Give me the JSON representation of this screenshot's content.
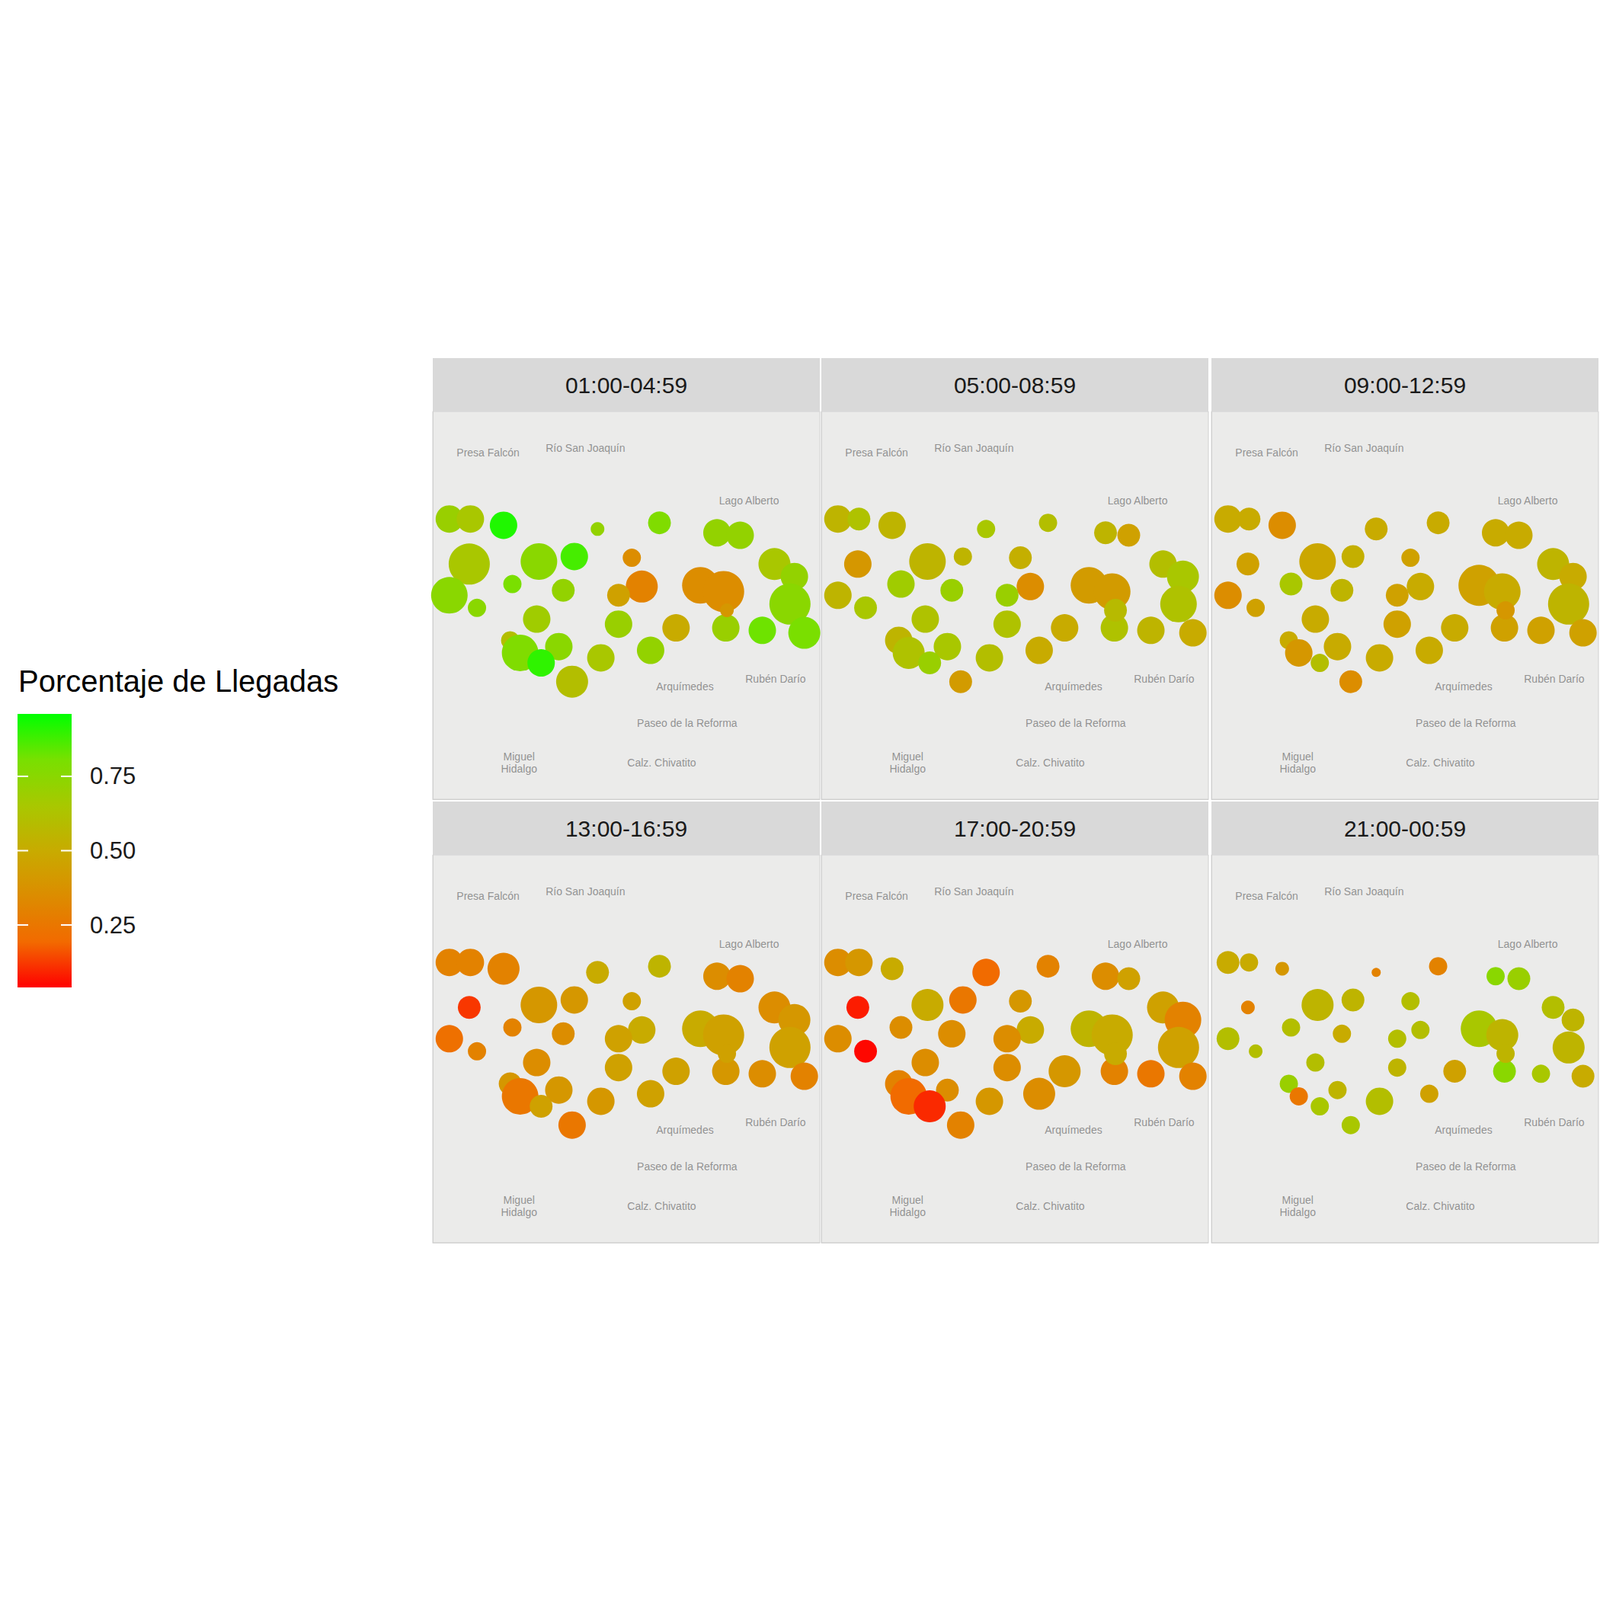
{
  "chart_data": {
    "type": "scatter",
    "tick_labels": false,
    "grid": false,
    "xlim": [
      -99.205,
      -99.17
    ],
    "ylim": [
      19.418,
      19.449
    ],
    "stations": {
      "x": [
        -99.2035,
        -99.2016,
        -99.1986,
        -99.1901,
        -99.1845,
        -99.1793,
        -99.1772,
        -99.2017,
        -99.1954,
        -99.1922,
        -99.187,
        -99.1741,
        -99.1723,
        -99.1978,
        -99.1932,
        -99.1861,
        -99.1882,
        -99.1808,
        -99.1787,
        -99.2035,
        -99.1727,
        -99.201,
        -99.1956,
        -99.1882,
        -99.183,
        -99.1785,
        -99.1752,
        -99.1714,
        -99.198,
        -99.1936,
        -99.1971,
        -99.1952,
        -99.1898,
        -99.1853,
        -99.1924,
        -99.1784
      ],
      "y": [
        19.4404,
        19.4404,
        19.4399,
        19.4396,
        19.4401,
        19.4393,
        19.4391,
        19.4368,
        19.437,
        19.4374,
        19.4373,
        19.4368,
        19.4358,
        19.4352,
        19.4347,
        19.435,
        19.4343,
        19.4351,
        19.4346,
        19.4343,
        19.4336,
        19.4333,
        19.4324,
        19.432,
        19.4317,
        19.4317,
        19.4315,
        19.4313,
        19.4307,
        19.4302,
        19.4297,
        19.4289,
        19.4293,
        19.4299,
        19.4274,
        19.4331
      ]
    },
    "panels": [
      {
        "title": "01:00-04:59",
        "values": [
          0.7,
          0.65,
          0.92,
          0.72,
          0.78,
          0.72,
          0.72,
          0.65,
          0.75,
          0.87,
          0.35,
          0.65,
          0.72,
          0.8,
          0.72,
          0.3,
          0.45,
          0.35,
          0.35,
          0.75,
          0.75,
          0.75,
          0.68,
          0.7,
          0.5,
          0.7,
          0.82,
          0.8,
          0.6,
          0.75,
          0.78,
          0.9,
          0.65,
          0.72,
          0.6,
          0.4
        ],
        "sizes": [
          6,
          6,
          6,
          3,
          5,
          6,
          6,
          9,
          8,
          6,
          4,
          7,
          6,
          4,
          5,
          7,
          5,
          8,
          9,
          8,
          9,
          4,
          6,
          6,
          6,
          6,
          6,
          7,
          4,
          6,
          8,
          6,
          6,
          6,
          7,
          3
        ]
      },
      {
        "title": "05:00-08:59",
        "values": [
          0.55,
          0.62,
          0.55,
          0.65,
          0.6,
          0.55,
          0.45,
          0.4,
          0.55,
          0.55,
          0.52,
          0.6,
          0.65,
          0.68,
          0.7,
          0.35,
          0.7,
          0.42,
          0.42,
          0.55,
          0.62,
          0.65,
          0.62,
          0.62,
          0.5,
          0.62,
          0.55,
          0.5,
          0.55,
          0.65,
          0.62,
          0.7,
          0.6,
          0.5,
          0.42,
          0.58
        ],
        "sizes": [
          6,
          5,
          6,
          4,
          4,
          5,
          5,
          6,
          8,
          4,
          5,
          6,
          7,
          6,
          5,
          6,
          5,
          8,
          8,
          6,
          8,
          5,
          6,
          6,
          6,
          6,
          6,
          6,
          6,
          6,
          7,
          5,
          6,
          6,
          5,
          5
        ]
      },
      {
        "title": "09:00-12:59",
        "values": [
          0.5,
          0.5,
          0.35,
          0.5,
          0.5,
          0.5,
          0.5,
          0.45,
          0.48,
          0.52,
          0.45,
          0.55,
          0.5,
          0.65,
          0.55,
          0.5,
          0.45,
          0.45,
          0.5,
          0.35,
          0.55,
          0.45,
          0.5,
          0.45,
          0.5,
          0.45,
          0.45,
          0.45,
          0.5,
          0.5,
          0.4,
          0.6,
          0.5,
          0.5,
          0.35,
          0.4
        ],
        "sizes": [
          6,
          5,
          6,
          5,
          5,
          6,
          6,
          5,
          8,
          5,
          4,
          7,
          6,
          5,
          5,
          6,
          5,
          9,
          8,
          6,
          9,
          4,
          6,
          6,
          6,
          6,
          6,
          6,
          4,
          6,
          6,
          4,
          6,
          6,
          5,
          4
        ]
      },
      {
        "title": "13:00-16:59",
        "values": [
          0.3,
          0.3,
          0.3,
          0.5,
          0.55,
          0.35,
          0.3,
          0.12,
          0.4,
          0.4,
          0.45,
          0.35,
          0.4,
          0.3,
          0.35,
          0.5,
          0.45,
          0.5,
          0.45,
          0.22,
          0.45,
          0.3,
          0.35,
          0.45,
          0.45,
          0.4,
          0.35,
          0.3,
          0.4,
          0.4,
          0.25,
          0.45,
          0.4,
          0.45,
          0.25,
          0.45
        ],
        "sizes": [
          6,
          6,
          7,
          5,
          5,
          6,
          6,
          5,
          8,
          6,
          4,
          7,
          7,
          4,
          5,
          6,
          6,
          8,
          9,
          6,
          9,
          4,
          6,
          6,
          6,
          6,
          6,
          6,
          5,
          6,
          8,
          5,
          6,
          6,
          6,
          4
        ]
      },
      {
        "title": "17:00-20:59",
        "values": [
          0.35,
          0.4,
          0.5,
          0.2,
          0.3,
          0.35,
          0.45,
          0.08,
          0.5,
          0.25,
          0.4,
          0.45,
          0.3,
          0.35,
          0.35,
          0.5,
          0.35,
          0.55,
          0.5,
          0.35,
          0.45,
          0.05,
          0.35,
          0.35,
          0.4,
          0.3,
          0.25,
          0.3,
          0.3,
          0.35,
          0.2,
          0.1,
          0.4,
          0.35,
          0.3,
          0.5
        ],
        "sizes": [
          6,
          6,
          5,
          6,
          5,
          6,
          5,
          5,
          7,
          6,
          5,
          7,
          8,
          5,
          6,
          6,
          6,
          8,
          9,
          6,
          9,
          5,
          6,
          6,
          7,
          6,
          6,
          6,
          6,
          5,
          8,
          7,
          6,
          7,
          6,
          5
        ]
      },
      {
        "title": "21:00-00:59",
        "values": [
          0.5,
          0.5,
          0.4,
          0.3,
          0.3,
          0.75,
          0.7,
          0.3,
          0.55,
          0.55,
          0.6,
          0.6,
          0.55,
          0.6,
          0.5,
          0.6,
          0.6,
          0.65,
          0.55,
          0.6,
          0.55,
          0.6,
          0.6,
          0.55,
          0.45,
          0.75,
          0.65,
          0.5,
          0.7,
          0.55,
          0.25,
          0.65,
          0.6,
          0.45,
          0.65,
          0.55
        ],
        "sizes": [
          5,
          4,
          3,
          2,
          4,
          4,
          5,
          3,
          7,
          5,
          4,
          5,
          5,
          4,
          4,
          4,
          4,
          8,
          7,
          5,
          7,
          3,
          4,
          4,
          5,
          5,
          4,
          5,
          4,
          4,
          4,
          4,
          6,
          4,
          4,
          4
        ]
      }
    ],
    "colorbar": {
      "title": "Porcentaje de Llegadas",
      "range": [
        0.04,
        0.96
      ],
      "ticks": [
        {
          "value": 0.25,
          "label": "0.25"
        },
        {
          "value": 0.5,
          "label": "0.50"
        },
        {
          "value": 0.75,
          "label": "0.75"
        }
      ]
    },
    "map_labels": [
      {
        "text": "Lago Alberto",
        "x": -99.1764,
        "y": 19.4419
      },
      {
        "text": "Río San Joaquín",
        "x": -99.1912,
        "y": 19.4461
      },
      {
        "text": "Presa Falcón",
        "x": -99.2,
        "y": 19.4457
      },
      {
        "text": "Paseo de la Reforma",
        "x": -99.182,
        "y": 19.4241
      },
      {
        "text": "Miguel\nHidalgo",
        "x": -99.1972,
        "y": 19.4209
      },
      {
        "text": "Rubén Darío",
        "x": -99.174,
        "y": 19.4276
      },
      {
        "text": "Arquímedes",
        "x": -99.1822,
        "y": 19.427
      },
      {
        "text": "Calz. Chivatito",
        "x": -99.1843,
        "y": 19.4209
      }
    ]
  }
}
